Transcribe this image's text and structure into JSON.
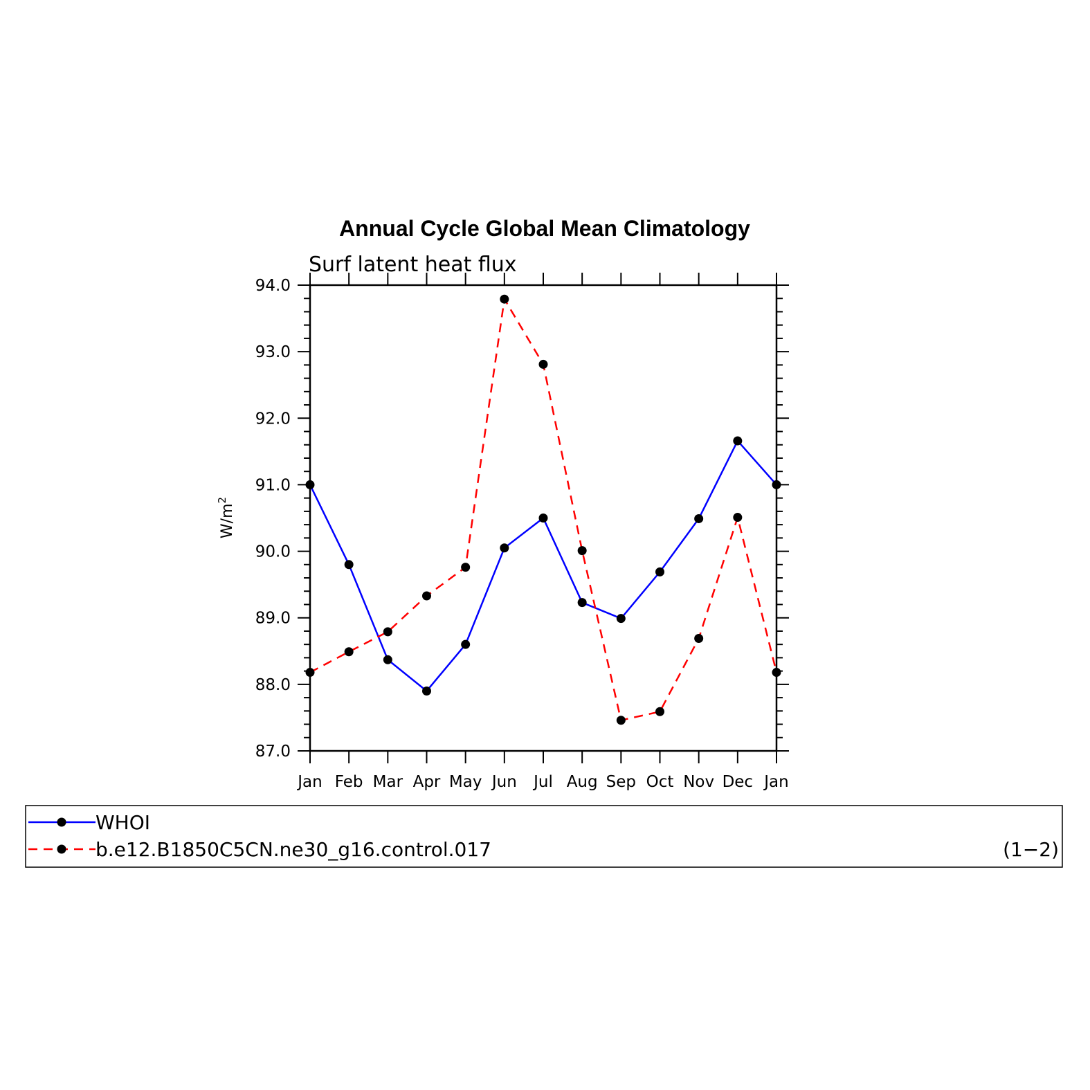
{
  "chart_data": {
    "type": "line",
    "title": "Annual Cycle Global Mean Climatology",
    "subtitle": "Surf latent heat flux",
    "ylabel": "W/m²",
    "ylabel_base": "W/m",
    "ylabel_sup": "2",
    "xlabel": "",
    "categories": [
      "Jan",
      "Feb",
      "Mar",
      "Apr",
      "May",
      "Jun",
      "Jul",
      "Aug",
      "Sep",
      "Oct",
      "Nov",
      "Dec",
      "Jan"
    ],
    "ylim": [
      87.0,
      94.0
    ],
    "yticks": [
      "87.0",
      "88.0",
      "89.0",
      "90.0",
      "91.0",
      "92.0",
      "93.0",
      "94.0"
    ],
    "grid": false,
    "legend_placement": "bottom",
    "series": [
      {
        "name": "WHOI",
        "color": "#0000ff",
        "dash": "solid",
        "values": [
          91.0,
          89.8,
          88.37,
          87.9,
          88.6,
          90.05,
          90.5,
          89.23,
          88.99,
          89.69,
          90.49,
          91.66,
          91.0
        ]
      },
      {
        "name": "b.e12.B1850C5CN.ne30_g16.control.017",
        "color": "#ff0000",
        "dash": "dashed",
        "values": [
          88.18,
          88.49,
          88.79,
          89.33,
          89.76,
          93.79,
          92.81,
          90.01,
          87.46,
          87.59,
          88.69,
          90.51,
          88.18
        ]
      }
    ],
    "marker_color": "#000000",
    "panel_label": "(1−2)"
  }
}
